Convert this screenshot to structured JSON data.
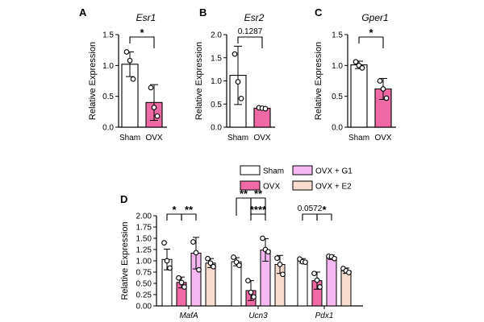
{
  "figure": {
    "colors": {
      "sham": "#ffffff",
      "ovx": "#ef6aa5",
      "ovx_g1": "#f5b8f0",
      "ovx_e2": "#f8dcd0",
      "edge": "#000000"
    }
  },
  "chart_data": [
    {
      "type": "bar",
      "panel": "A",
      "title": "Esr1",
      "ylabel": "Relative Expression",
      "ylim": [
        0,
        1.5
      ],
      "yticks": [
        "0.0",
        "0.5",
        "1.0",
        "1.5"
      ],
      "categories": [
        "Sham",
        "OVX"
      ],
      "values": [
        1.02,
        0.4
      ],
      "errors": [
        0.2,
        0.29
      ],
      "points": [
        [
          1.22,
          1.08,
          0.78
        ],
        [
          0.64,
          0.32,
          0.18
        ]
      ],
      "significance": [
        {
          "from": 0,
          "to": 1,
          "label": "*"
        }
      ]
    },
    {
      "type": "bar",
      "panel": "B",
      "title": "Esr2",
      "ylabel": "Relative Expression",
      "ylim": [
        0,
        2.0
      ],
      "yticks": [
        "0.0",
        "0.5",
        "1.0",
        "1.5",
        "2.0"
      ],
      "categories": [
        "Sham",
        "OVX"
      ],
      "values": [
        1.12,
        0.41
      ],
      "errors": [
        0.63,
        0.03
      ],
      "points": [
        [
          1.58,
          0.98,
          0.62
        ],
        [
          0.42,
          0.41,
          0.4
        ]
      ],
      "significance": [
        {
          "from": 0,
          "to": 1,
          "label": "0.1287"
        }
      ]
    },
    {
      "type": "bar",
      "panel": "C",
      "title": "Gper1",
      "ylabel": "Relative Expression",
      "ylim": [
        0,
        1.5
      ],
      "yticks": [
        "0.0",
        "0.5",
        "1.0",
        "1.5"
      ],
      "categories": [
        "Sham",
        "OVX"
      ],
      "values": [
        1.01,
        0.62
      ],
      "errors": [
        0.06,
        0.17
      ],
      "points": [
        [
          1.06,
          1.0,
          0.96
        ],
        [
          0.75,
          0.62,
          0.47
        ]
      ],
      "significance": [
        {
          "from": 0,
          "to": 1,
          "label": "*"
        }
      ]
    },
    {
      "type": "bar",
      "panel": "D",
      "ylabel": "Relative Expression",
      "ylim": [
        0,
        2.0
      ],
      "yticks": [
        "0.00",
        "0.25",
        "0.50",
        "0.75",
        "1.00",
        "1.25",
        "1.50",
        "1.75",
        "2.00"
      ],
      "categories": [
        "MafA",
        "Ucn3",
        "Pdx1"
      ],
      "series": [
        {
          "name": "Sham",
          "values": [
            1.03,
            0.98,
            1.0
          ],
          "errors": [
            0.23,
            0.09,
            0.05
          ],
          "points": [
            [
              1.4,
              1.0,
              0.84
            ],
            [
              1.08,
              0.97,
              0.9
            ],
            [
              1.04,
              0.98,
              0.97
            ]
          ]
        },
        {
          "name": "OVX",
          "values": [
            0.52,
            0.34,
            0.56
          ],
          "errors": [
            0.12,
            0.22,
            0.19
          ],
          "points": [
            [
              0.62,
              0.52,
              0.42
            ],
            [
              0.56,
              0.3,
              0.2
            ],
            [
              0.72,
              0.57,
              0.42
            ]
          ]
        },
        {
          "name": "OVX + G1",
          "values": [
            1.17,
            1.24,
            1.08
          ],
          "errors": [
            0.35,
            0.25,
            0.05
          ],
          "points": [
            [
              1.42,
              1.18,
              0.8
            ],
            [
              1.5,
              1.25,
              1.2
            ],
            [
              1.1,
              1.09,
              1.05
            ]
          ]
        },
        {
          "name": "OVX + E2",
          "values": [
            0.95,
            0.92,
            0.78
          ],
          "errors": [
            0.1,
            0.2,
            0.06
          ],
          "points": [
            [
              1.05,
              0.95,
              0.87
            ],
            [
              1.06,
              0.92,
              0.7
            ],
            [
              0.83,
              0.78,
              0.74
            ]
          ]
        }
      ],
      "significance": [
        {
          "group": 0,
          "from": 0,
          "to": 1,
          "level": 0,
          "label": "*"
        },
        {
          "group": 0,
          "from": 1,
          "to": 2,
          "level": 0,
          "label": "**"
        },
        {
          "group": 1,
          "from": 0,
          "to": 1,
          "level": 1,
          "label": "**"
        },
        {
          "group": 1,
          "from": 1,
          "to": 2,
          "level": 1,
          "label": "**"
        },
        {
          "group": 1,
          "from": 1,
          "to": 2,
          "level": 0,
          "label": "****"
        },
        {
          "group": 2,
          "from": 0,
          "to": 1,
          "level": 0,
          "label": "0.0572"
        },
        {
          "group": 2,
          "from": 1,
          "to": 2,
          "level": 0,
          "label": "*"
        }
      ],
      "legend": "top"
    }
  ]
}
